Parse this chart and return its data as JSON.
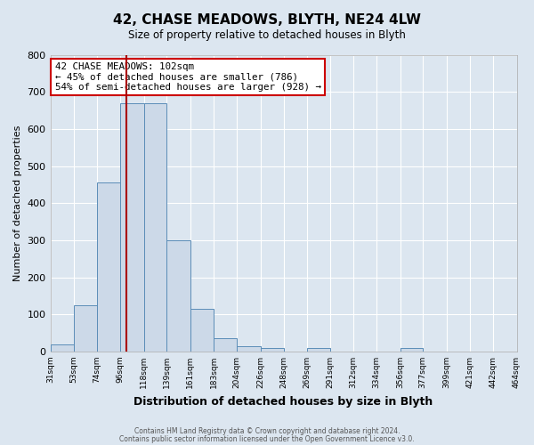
{
  "title": "42, CHASE MEADOWS, BLYTH, NE24 4LW",
  "subtitle": "Size of property relative to detached houses in Blyth",
  "xlabel": "Distribution of detached houses by size in Blyth",
  "ylabel": "Number of detached properties",
  "bin_edges": [
    31,
    53,
    74,
    96,
    118,
    139,
    161,
    183,
    204,
    226,
    248,
    269,
    291,
    312,
    334,
    356,
    377,
    399,
    421,
    442,
    464
  ],
  "bar_heights": [
    20,
    125,
    455,
    670,
    670,
    300,
    115,
    35,
    15,
    10,
    0,
    10,
    0,
    0,
    0,
    10,
    0,
    0,
    0,
    0
  ],
  "bar_color": "#ccd9e8",
  "bar_edge_color": "#5b8db8",
  "red_line_x": 102,
  "ylim": [
    0,
    800
  ],
  "yticks": [
    0,
    100,
    200,
    300,
    400,
    500,
    600,
    700,
    800
  ],
  "annotation_title": "42 CHASE MEADOWS: 102sqm",
  "annotation_line1": "← 45% of detached houses are smaller (786)",
  "annotation_line2": "54% of semi-detached houses are larger (928) →",
  "annotation_box_color": "#ffffff",
  "annotation_border_color": "#cc0000",
  "footer1": "Contains HM Land Registry data © Crown copyright and database right 2024.",
  "footer2": "Contains public sector information licensed under the Open Government Licence v3.0.",
  "background_color": "#dce6f0",
  "plot_bg_color": "#dce6f0",
  "grid_color": "#ffffff"
}
